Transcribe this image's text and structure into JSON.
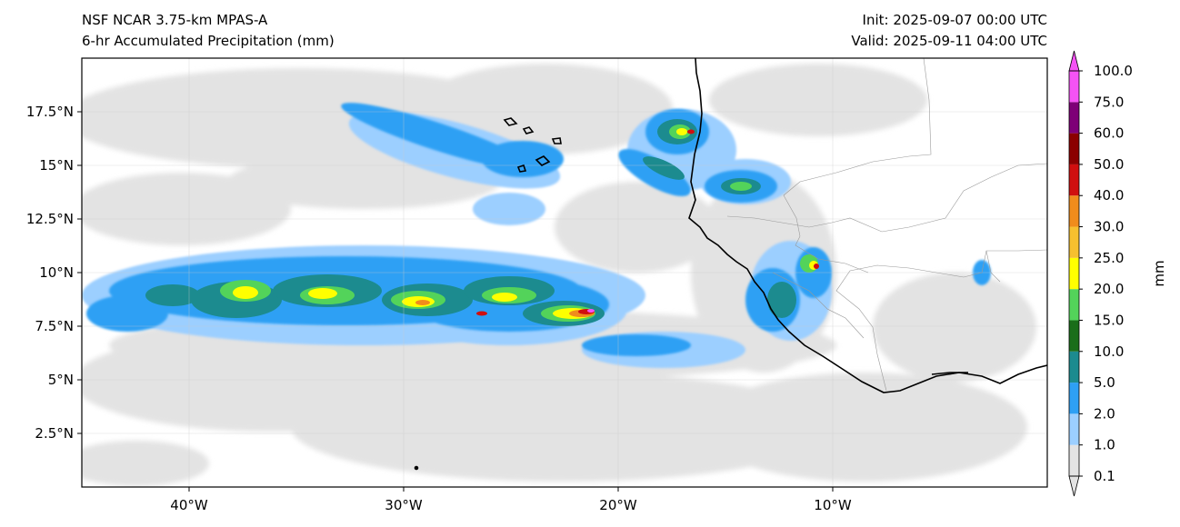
{
  "header": {
    "model": "NSF NCAR 3.75-km MPAS-A",
    "field": "6-hr Accumulated Precipitation (mm)",
    "init": "Init: 2025-09-07 00:00 UTC",
    "valid": "Valid: 2025-09-11 04:00 UTC"
  },
  "map": {
    "lon_range": [
      -45,
      0
    ],
    "lat_range": [
      0,
      20
    ],
    "lon_ticks": [
      {
        "value": -40,
        "label": "40°W"
      },
      {
        "value": -30,
        "label": "30°W"
      },
      {
        "value": -20,
        "label": "20°W"
      },
      {
        "value": -10,
        "label": "10°W"
      }
    ],
    "lat_ticks": [
      {
        "value": 2.5,
        "label": "2.5°N"
      },
      {
        "value": 5,
        "label": "5°N"
      },
      {
        "value": 7.5,
        "label": "7.5°N"
      },
      {
        "value": 10,
        "label": "10°N"
      },
      {
        "value": 12.5,
        "label": "12.5°N"
      },
      {
        "value": 15,
        "label": "15°N"
      },
      {
        "value": 17.5,
        "label": "17.5°N"
      }
    ]
  },
  "colorbar": {
    "label": "mm",
    "levels": [
      "0.1",
      "1.0",
      "2.0",
      "5.0",
      "10.0",
      "15.0",
      "20.0",
      "25.0",
      "30.0",
      "40.0",
      "50.0",
      "60.0",
      "75.0",
      "100.0"
    ],
    "colors": [
      "#e3e3e3",
      "#9ccfff",
      "#2ea0f4",
      "#1c8b8f",
      "#1a6e1a",
      "#53d35a",
      "#ffff00",
      "#f6c02f",
      "#f08c1c",
      "#d00f0f",
      "#8b0000",
      "#7e0077",
      "#f553f5"
    ]
  }
}
